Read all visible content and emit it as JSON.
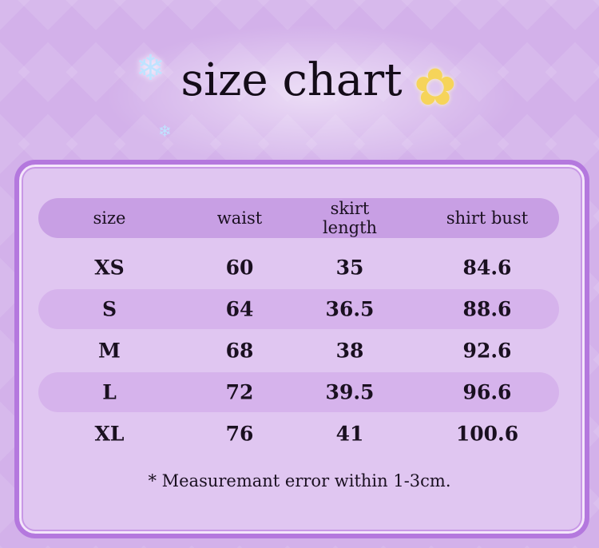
{
  "title": "size chart",
  "table": {
    "headers": [
      "size",
      "waist",
      "skirt length",
      "shirt bust"
    ],
    "header_skirt_lines": [
      "skirt",
      "length"
    ],
    "rows": [
      [
        "XS",
        "60",
        "35",
        "84.6"
      ],
      [
        "S",
        "64",
        "36.5",
        "88.6"
      ],
      [
        "M",
        "68",
        "38",
        "92.6"
      ],
      [
        "L",
        "72",
        "39.5",
        "96.6"
      ],
      [
        "XL",
        "76",
        "41",
        "100.6"
      ]
    ]
  },
  "note": "* Measuremant error within 1-3cm.",
  "colors": {
    "background": "#d3b1ea",
    "frame": "#b478de",
    "panel": "#e0c6f1",
    "header_row": "#c89fe4",
    "stripe_row": "#d6b3ec"
  }
}
